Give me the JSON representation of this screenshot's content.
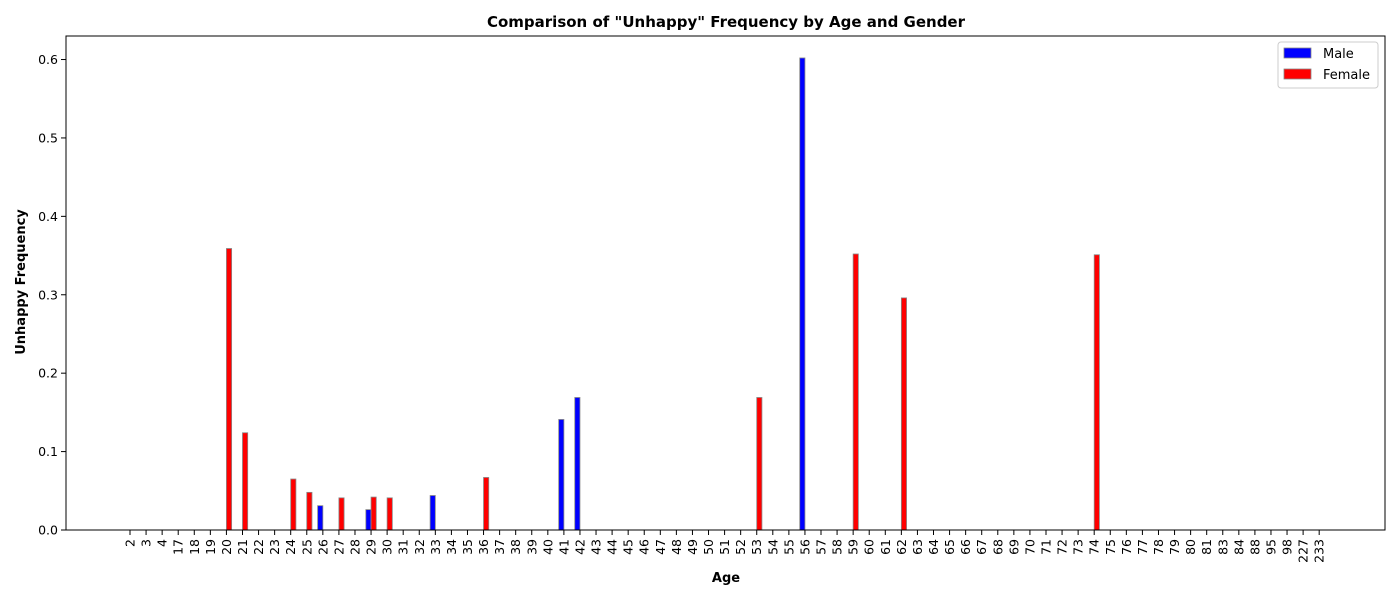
{
  "chart_data": {
    "type": "bar",
    "title": "Comparison of \"Unhappy\" Frequency by Age and Gender",
    "xlabel": "Age",
    "ylabel": "Unhappy Frequency",
    "ylim": [
      0,
      0.63
    ],
    "yticks": [
      "0.0",
      "0.1",
      "0.2",
      "0.3",
      "0.4",
      "0.5",
      "0.6"
    ],
    "categories": [
      "2",
      "3",
      "4",
      "17",
      "18",
      "19",
      "20",
      "21",
      "22",
      "23",
      "24",
      "25",
      "26",
      "27",
      "28",
      "29",
      "30",
      "31",
      "32",
      "33",
      "34",
      "35",
      "36",
      "37",
      "38",
      "39",
      "40",
      "41",
      "42",
      "43",
      "44",
      "45",
      "46",
      "47",
      "48",
      "49",
      "50",
      "51",
      "52",
      "53",
      "54",
      "55",
      "56",
      "57",
      "58",
      "59",
      "60",
      "61",
      "62",
      "63",
      "64",
      "65",
      "66",
      "67",
      "68",
      "69",
      "70",
      "71",
      "72",
      "73",
      "74",
      "75",
      "76",
      "77",
      "78",
      "79",
      "80",
      "81",
      "83",
      "84",
      "88",
      "95",
      "98",
      "227",
      "233"
    ],
    "series": [
      {
        "name": "Male",
        "color": "#0000ff",
        "values": [
          0,
          0,
          0,
          0,
          0,
          0,
          0,
          0,
          0,
          0,
          0,
          0,
          0.031,
          0,
          0,
          0.026,
          0,
          0,
          0,
          0.044,
          0,
          0,
          0,
          0,
          0,
          0,
          0,
          0.141,
          0.169,
          0,
          0,
          0,
          0,
          0,
          0,
          0,
          0,
          0,
          0,
          0,
          0,
          0,
          0.602,
          0,
          0,
          0,
          0,
          0,
          0,
          0,
          0,
          0,
          0,
          0,
          0,
          0,
          0,
          0,
          0,
          0,
          0,
          0,
          0,
          0,
          0,
          0,
          0,
          0,
          0,
          0,
          0,
          0,
          0,
          0,
          0
        ]
      },
      {
        "name": "Female",
        "color": "#ff0000",
        "values": [
          0,
          0,
          0,
          0,
          0,
          0,
          0.359,
          0.124,
          0,
          0,
          0.065,
          0.048,
          0,
          0.041,
          0,
          0.042,
          0.041,
          0,
          0,
          0,
          0,
          0,
          0.067,
          0,
          0,
          0,
          0,
          0,
          0,
          0,
          0,
          0,
          0,
          0,
          0,
          0,
          0,
          0,
          0,
          0.169,
          0,
          0,
          0,
          0,
          0,
          0.352,
          0,
          0,
          0.296,
          0,
          0,
          0,
          0,
          0,
          0,
          0,
          0,
          0,
          0,
          0,
          0.351,
          0,
          0,
          0,
          0,
          0,
          0,
          0,
          0,
          0,
          0,
          0,
          0,
          0,
          0
        ]
      }
    ],
    "legend_position": "top-right",
    "grid": false
  }
}
